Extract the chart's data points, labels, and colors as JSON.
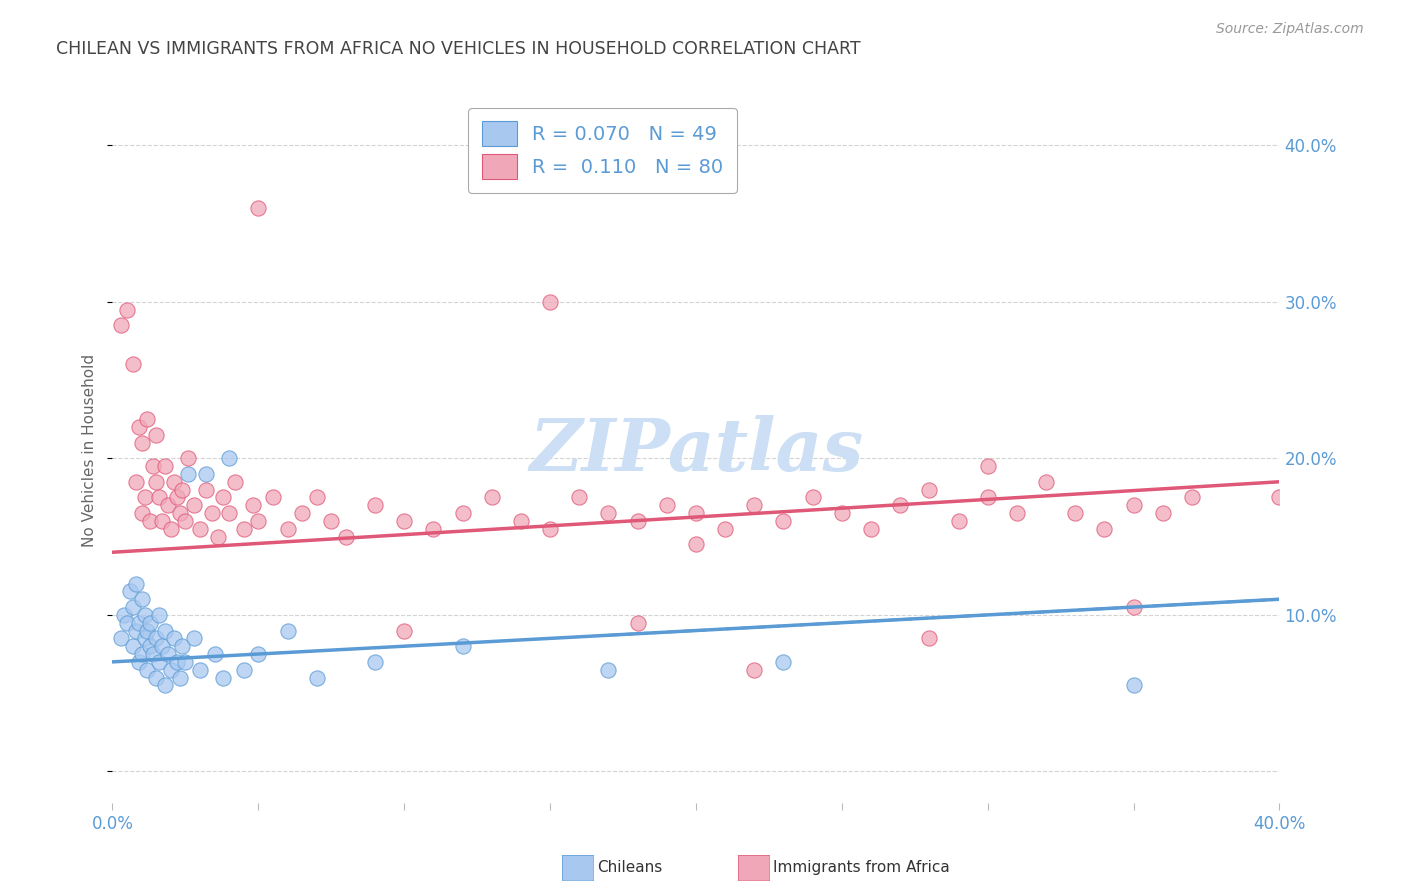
{
  "title": "CHILEAN VS IMMIGRANTS FROM AFRICA NO VEHICLES IN HOUSEHOLD CORRELATION CHART",
  "source": "Source: ZipAtlas.com",
  "ylabel_left": "No Vehicles in Household",
  "x_min": 0.0,
  "x_max": 0.4,
  "y_min": -0.02,
  "y_max": 0.43,
  "background_color": "#ffffff",
  "grid_color": "#c8c8c8",
  "title_color": "#444444",
  "axis_label_color": "#5b9bd5",
  "chilean_color": "#a8c8f0",
  "africa_color": "#f0a8b8",
  "chilean_line_color": "#5b9bd5",
  "africa_line_color": "#e05878",
  "R_chilean": 0.07,
  "N_chilean": 49,
  "R_africa": 0.11,
  "N_africa": 80,
  "legend_label_chilean": "Chileans",
  "legend_label_africa": "Immigrants from Africa",
  "watermark": "ZIPatlas",
  "watermark_color": "#ccdff5",
  "watermark_size": 52,
  "chilean_trend_start": 0.07,
  "chilean_trend_end": 0.11,
  "africa_trend_start": 0.14,
  "africa_trend_end": 0.185,
  "chileans_x": [
    0.003,
    0.004,
    0.005,
    0.006,
    0.007,
    0.007,
    0.008,
    0.008,
    0.009,
    0.009,
    0.01,
    0.01,
    0.011,
    0.011,
    0.012,
    0.012,
    0.013,
    0.013,
    0.014,
    0.015,
    0.015,
    0.016,
    0.016,
    0.017,
    0.018,
    0.018,
    0.019,
    0.02,
    0.021,
    0.022,
    0.023,
    0.024,
    0.025,
    0.026,
    0.028,
    0.03,
    0.032,
    0.035,
    0.038,
    0.04,
    0.045,
    0.05,
    0.06,
    0.07,
    0.09,
    0.12,
    0.17,
    0.23,
    0.35
  ],
  "chileans_y": [
    0.085,
    0.1,
    0.095,
    0.115,
    0.08,
    0.105,
    0.09,
    0.12,
    0.07,
    0.095,
    0.075,
    0.11,
    0.085,
    0.1,
    0.065,
    0.09,
    0.08,
    0.095,
    0.075,
    0.06,
    0.085,
    0.07,
    0.1,
    0.08,
    0.055,
    0.09,
    0.075,
    0.065,
    0.085,
    0.07,
    0.06,
    0.08,
    0.07,
    0.19,
    0.085,
    0.065,
    0.19,
    0.075,
    0.06,
    0.2,
    0.065,
    0.075,
    0.09,
    0.06,
    0.07,
    0.08,
    0.065,
    0.07,
    0.055
  ],
  "africa_x": [
    0.003,
    0.005,
    0.007,
    0.008,
    0.009,
    0.01,
    0.01,
    0.011,
    0.012,
    0.013,
    0.014,
    0.015,
    0.015,
    0.016,
    0.017,
    0.018,
    0.019,
    0.02,
    0.021,
    0.022,
    0.023,
    0.024,
    0.025,
    0.026,
    0.028,
    0.03,
    0.032,
    0.034,
    0.036,
    0.038,
    0.04,
    0.042,
    0.045,
    0.048,
    0.05,
    0.055,
    0.06,
    0.065,
    0.07,
    0.075,
    0.08,
    0.09,
    0.1,
    0.11,
    0.12,
    0.13,
    0.14,
    0.15,
    0.16,
    0.17,
    0.18,
    0.19,
    0.2,
    0.21,
    0.22,
    0.23,
    0.24,
    0.25,
    0.26,
    0.27,
    0.28,
    0.29,
    0.3,
    0.31,
    0.32,
    0.33,
    0.34,
    0.35,
    0.36,
    0.37,
    0.15,
    0.2,
    0.05,
    0.3,
    0.35,
    0.28,
    0.22,
    0.18,
    0.1,
    0.4
  ],
  "africa_y": [
    0.285,
    0.295,
    0.26,
    0.185,
    0.22,
    0.165,
    0.21,
    0.175,
    0.225,
    0.16,
    0.195,
    0.185,
    0.215,
    0.175,
    0.16,
    0.195,
    0.17,
    0.155,
    0.185,
    0.175,
    0.165,
    0.18,
    0.16,
    0.2,
    0.17,
    0.155,
    0.18,
    0.165,
    0.15,
    0.175,
    0.165,
    0.185,
    0.155,
    0.17,
    0.16,
    0.175,
    0.155,
    0.165,
    0.175,
    0.16,
    0.15,
    0.17,
    0.16,
    0.155,
    0.165,
    0.175,
    0.16,
    0.155,
    0.175,
    0.165,
    0.16,
    0.17,
    0.165,
    0.155,
    0.17,
    0.16,
    0.175,
    0.165,
    0.155,
    0.17,
    0.18,
    0.16,
    0.175,
    0.165,
    0.185,
    0.165,
    0.155,
    0.17,
    0.165,
    0.175,
    0.3,
    0.145,
    0.36,
    0.195,
    0.105,
    0.085,
    0.065,
    0.095,
    0.09,
    0.175
  ]
}
